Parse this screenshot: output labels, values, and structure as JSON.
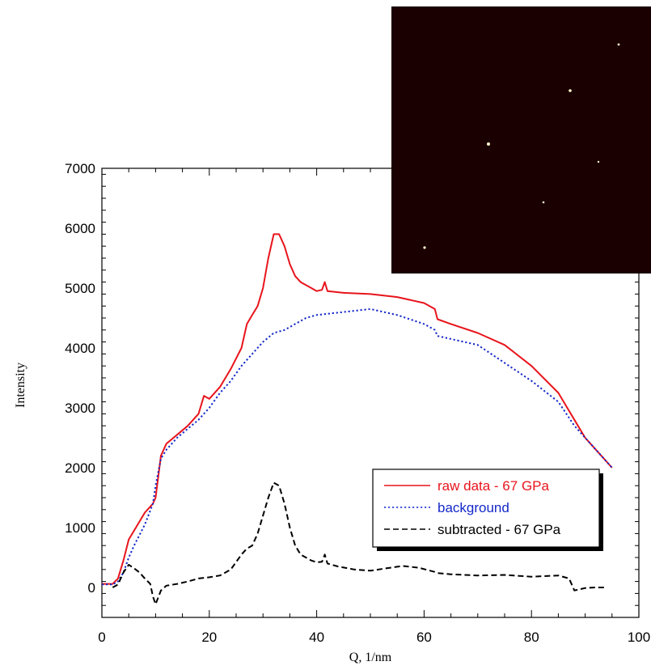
{
  "chart_data": {
    "type": "line",
    "title": "",
    "xlabel": "Q, 1/nm",
    "ylabel": "Intensity",
    "xlim": [
      0,
      100
    ],
    "ylim": [
      -500,
      7000
    ],
    "grid": false,
    "legend": "bottom-right",
    "xticks": [
      "0",
      "20",
      "40",
      "60",
      "80",
      "100"
    ],
    "yticks": [
      "0",
      "1000",
      "2000",
      "3000",
      "4000",
      "5000",
      "6000",
      "7000"
    ],
    "series": [
      {
        "name": "raw data - 67 GPa",
        "color": "#e8141c",
        "style": "solid",
        "points": [
          [
            0,
            60
          ],
          [
            2,
            60
          ],
          [
            3,
            150
          ],
          [
            4,
            450
          ],
          [
            5,
            800
          ],
          [
            6,
            950
          ],
          [
            8,
            1250
          ],
          [
            9.5,
            1400
          ],
          [
            10,
            1500
          ],
          [
            11,
            2200
          ],
          [
            12,
            2400
          ],
          [
            14,
            2550
          ],
          [
            16,
            2700
          ],
          [
            18,
            2900
          ],
          [
            19,
            3200
          ],
          [
            20,
            3150
          ],
          [
            22,
            3350
          ],
          [
            24,
            3650
          ],
          [
            26,
            4000
          ],
          [
            27,
            4400
          ],
          [
            28,
            4550
          ],
          [
            29,
            4700
          ],
          [
            30,
            5000
          ],
          [
            31,
            5500
          ],
          [
            32,
            5900
          ],
          [
            33,
            5900
          ],
          [
            34,
            5700
          ],
          [
            35,
            5400
          ],
          [
            36,
            5200
          ],
          [
            37,
            5100
          ],
          [
            38,
            5050
          ],
          [
            39,
            5000
          ],
          [
            40,
            4950
          ],
          [
            41,
            4970
          ],
          [
            41.5,
            5100
          ],
          [
            42,
            4950
          ],
          [
            45,
            4920
          ],
          [
            50,
            4900
          ],
          [
            55,
            4850
          ],
          [
            60,
            4750
          ],
          [
            62,
            4650
          ],
          [
            62.5,
            4480
          ],
          [
            65,
            4400
          ],
          [
            70,
            4250
          ],
          [
            75,
            4050
          ],
          [
            80,
            3700
          ],
          [
            85,
            3250
          ],
          [
            88,
            2800
          ],
          [
            90,
            2500
          ],
          [
            92,
            2300
          ],
          [
            95,
            2000
          ]
        ]
      },
      {
        "name": "background",
        "color": "#1428c8",
        "style": "dotted",
        "points": [
          [
            0,
            50
          ],
          [
            2,
            50
          ],
          [
            3,
            100
          ],
          [
            4,
            250
          ],
          [
            5,
            500
          ],
          [
            6,
            700
          ],
          [
            8,
            1050
          ],
          [
            9.5,
            1400
          ],
          [
            10,
            1700
          ],
          [
            11,
            2150
          ],
          [
            12,
            2300
          ],
          [
            14,
            2500
          ],
          [
            16,
            2650
          ],
          [
            18,
            2800
          ],
          [
            20,
            3000
          ],
          [
            22,
            3250
          ],
          [
            24,
            3450
          ],
          [
            26,
            3700
          ],
          [
            28,
            3900
          ],
          [
            30,
            4100
          ],
          [
            32,
            4250
          ],
          [
            34,
            4300
          ],
          [
            36,
            4400
          ],
          [
            38,
            4500
          ],
          [
            40,
            4550
          ],
          [
            45,
            4600
          ],
          [
            50,
            4650
          ],
          [
            55,
            4550
          ],
          [
            60,
            4400
          ],
          [
            62,
            4300
          ],
          [
            62.5,
            4200
          ],
          [
            65,
            4150
          ],
          [
            70,
            4050
          ],
          [
            75,
            3750
          ],
          [
            80,
            3450
          ],
          [
            85,
            3100
          ],
          [
            88,
            2700
          ],
          [
            90,
            2500
          ],
          [
            92,
            2300
          ],
          [
            95,
            2000
          ]
        ]
      },
      {
        "name": "subtracted - 67 GPa",
        "color": "#000000",
        "style": "dashed",
        "points": [
          [
            2,
            0
          ],
          [
            3,
            50
          ],
          [
            4,
            250
          ],
          [
            5,
            380
          ],
          [
            6,
            320
          ],
          [
            7,
            250
          ],
          [
            8,
            150
          ],
          [
            9,
            60
          ],
          [
            9.5,
            -150
          ],
          [
            10,
            -280
          ],
          [
            11,
            -50
          ],
          [
            12,
            30
          ],
          [
            14,
            60
          ],
          [
            16,
            100
          ],
          [
            18,
            150
          ],
          [
            20,
            170
          ],
          [
            22,
            200
          ],
          [
            24,
            300
          ],
          [
            26,
            550
          ],
          [
            27,
            650
          ],
          [
            28,
            700
          ],
          [
            29,
            900
          ],
          [
            30,
            1200
          ],
          [
            31,
            1500
          ],
          [
            32,
            1750
          ],
          [
            33,
            1700
          ],
          [
            34,
            1400
          ],
          [
            35,
            1000
          ],
          [
            36,
            700
          ],
          [
            37,
            550
          ],
          [
            38,
            500
          ],
          [
            39,
            450
          ],
          [
            40,
            420
          ],
          [
            41,
            430
          ],
          [
            41.5,
            550
          ],
          [
            42,
            400
          ],
          [
            44,
            350
          ],
          [
            47,
            300
          ],
          [
            50,
            280
          ],
          [
            53,
            320
          ],
          [
            56,
            360
          ],
          [
            59,
            330
          ],
          [
            62,
            260
          ],
          [
            62.5,
            240
          ],
          [
            65,
            220
          ],
          [
            70,
            200
          ],
          [
            75,
            210
          ],
          [
            80,
            180
          ],
          [
            85,
            200
          ],
          [
            87,
            150
          ],
          [
            88,
            -50
          ],
          [
            90,
            -10
          ],
          [
            92,
            0
          ],
          [
            94,
            0
          ]
        ]
      }
    ]
  }
}
